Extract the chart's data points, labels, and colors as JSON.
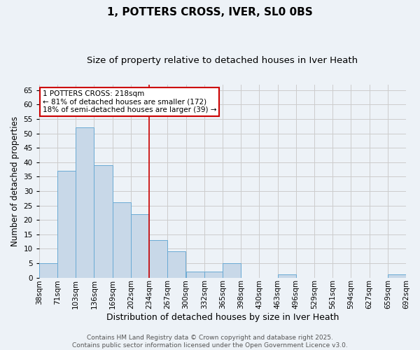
{
  "title": "1, POTTERS CROSS, IVER, SL0 0BS",
  "subtitle": "Size of property relative to detached houses in Iver Heath",
  "xlabel": "Distribution of detached houses by size in Iver Heath",
  "ylabel": "Number of detached properties",
  "bar_values": [
    5,
    37,
    52,
    39,
    26,
    22,
    13,
    9,
    2,
    2,
    5,
    0,
    0,
    1,
    0,
    0,
    0,
    0,
    0,
    1
  ],
  "bin_labels": [
    "38sqm",
    "71sqm",
    "103sqm",
    "136sqm",
    "169sqm",
    "202sqm",
    "234sqm",
    "267sqm",
    "300sqm",
    "332sqm",
    "365sqm",
    "398sqm",
    "430sqm",
    "463sqm",
    "496sqm",
    "529sqm",
    "561sqm",
    "594sqm",
    "627sqm",
    "659sqm",
    "692sqm"
  ],
  "bar_color": "#c8d8e8",
  "bar_edge_color": "#6aaad4",
  "grid_color": "#cccccc",
  "bg_color": "#edf2f7",
  "vline_color": "#cc0000",
  "vline_x": 5.5,
  "annotation_text": "1 POTTERS CROSS: 218sqm\n← 81% of detached houses are smaller (172)\n18% of semi-detached houses are larger (39) →",
  "annotation_box_color": "#ffffff",
  "annotation_box_edge": "#cc0000",
  "ylim": [
    0,
    67
  ],
  "yticks": [
    0,
    5,
    10,
    15,
    20,
    25,
    30,
    35,
    40,
    45,
    50,
    55,
    60,
    65
  ],
  "footer_text": "Contains HM Land Registry data © Crown copyright and database right 2025.\nContains public sector information licensed under the Open Government Licence v3.0.",
  "title_fontsize": 11,
  "subtitle_fontsize": 9.5,
  "xlabel_fontsize": 9,
  "ylabel_fontsize": 8.5,
  "tick_fontsize": 7.5,
  "annotation_fontsize": 7.5,
  "footer_fontsize": 6.5
}
